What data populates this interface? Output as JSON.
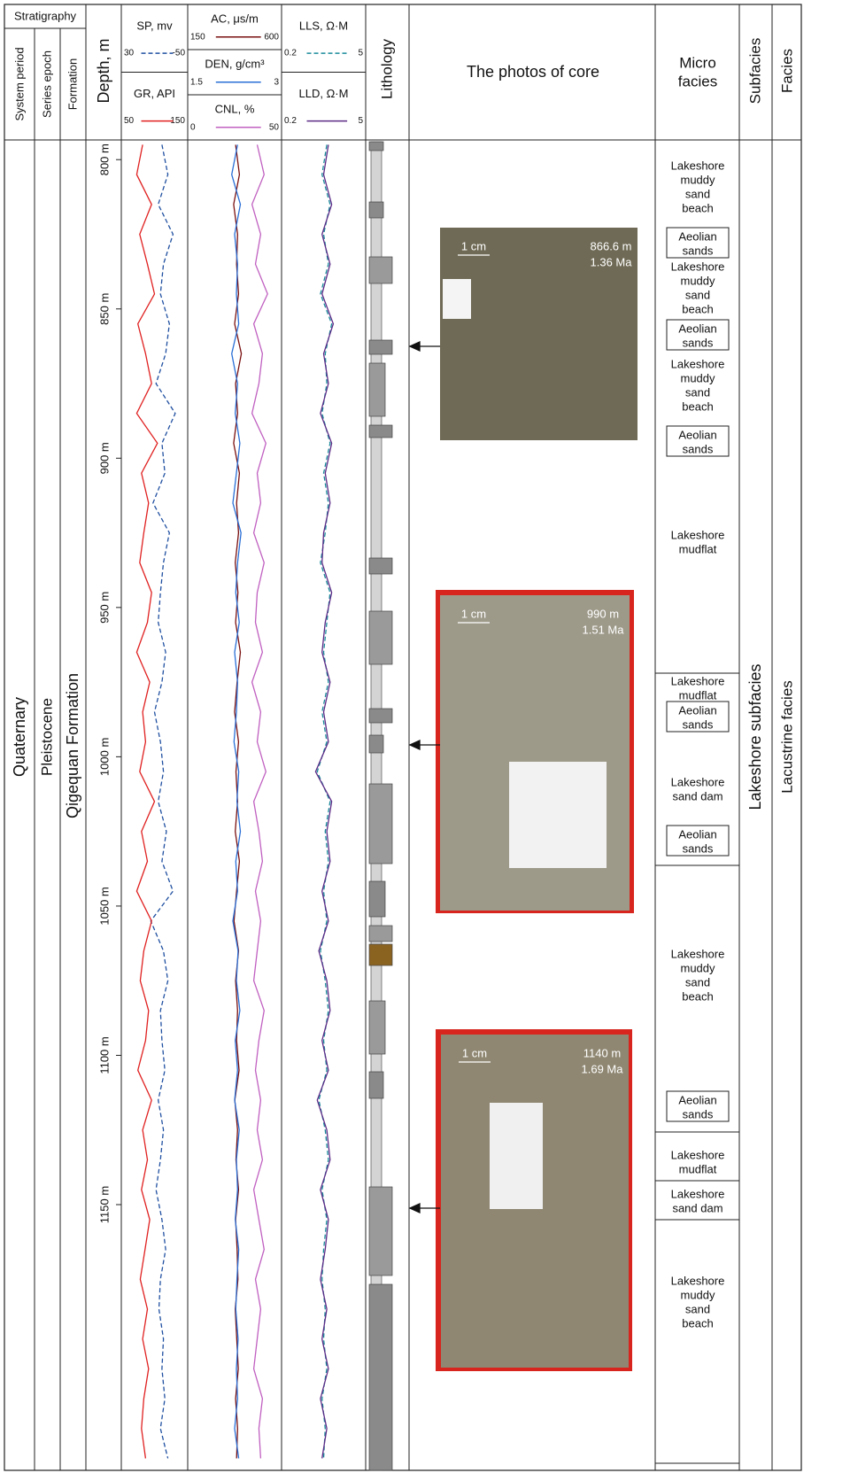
{
  "header": {
    "stratigraphy": "Stratigraphy",
    "system_period": "System period",
    "series_epoch": "Series epoch",
    "formation": "Formation",
    "depth": "Depth, m",
    "lithology": "Lithology",
    "photos": "The photos of core",
    "micro_facies": [
      "Micro",
      "facies"
    ],
    "subfacies": "Subfacies",
    "facies": "Facies"
  },
  "stratigraphy": {
    "system": "Quaternary",
    "series": "Pleistocene",
    "formation": "Qigequan Formation"
  },
  "depth": {
    "range": [
      794,
      1239
    ],
    "ticks": [
      {
        "value": 800,
        "label": "800 m"
      },
      {
        "value": 850,
        "label": "850 m"
      },
      {
        "value": 900,
        "label": "900 m"
      },
      {
        "value": 950,
        "label": "950 m"
      },
      {
        "value": 1000,
        "label": "1000 m"
      },
      {
        "value": 1050,
        "label": "1050 m"
      },
      {
        "value": 1100,
        "label": "1100 m"
      },
      {
        "value": 1150,
        "label": "1150 m"
      }
    ]
  },
  "logs": {
    "depths": [
      795,
      805,
      815,
      825,
      835,
      845,
      855,
      865,
      875,
      885,
      895,
      905,
      915,
      925,
      935,
      945,
      955,
      965,
      975,
      985,
      995,
      1005,
      1015,
      1025,
      1035,
      1045,
      1055,
      1065,
      1075,
      1085,
      1095,
      1105,
      1115,
      1125,
      1135,
      1145,
      1155,
      1165,
      1175,
      1185,
      1195,
      1205,
      1215,
      1225,
      1235
    ],
    "tracks": [
      {
        "curves": [
          {
            "name": "SP, mv",
            "color": "#1f4fa0",
            "dash": true,
            "scale": [
              30,
              -50
            ],
            "values": [
              -20,
              -28,
              -15,
              -35,
              -22,
              -18,
              -30,
              -25,
              -12,
              -38,
              -20,
              -24,
              -8,
              -30,
              -22,
              -18,
              -15,
              -25,
              -20,
              -10,
              -18,
              -22,
              -15,
              -26,
              -20,
              -35,
              -5,
              -22,
              -28,
              -18,
              -20,
              -24,
              -15,
              -22,
              -18,
              -12,
              -20,
              -25,
              -18,
              -16,
              -22,
              -20,
              -24,
              -18,
              -28
            ]
          },
          {
            "name": "GR, API",
            "color": "#e02020",
            "dash": false,
            "scale": [
              50,
              150
            ],
            "values": [
              80,
              70,
              95,
              75,
              88,
              100,
              72,
              85,
              95,
              70,
              105,
              78,
              90,
              82,
              75,
              95,
              88,
              70,
              92,
              80,
              85,
              75,
              100,
              78,
              88,
              70,
              95,
              82,
              76,
              90,
              85,
              72,
              95,
              80,
              88,
              78,
              92,
              84,
              76,
              88,
              80,
              90,
              82,
              78,
              85
            ]
          }
        ]
      },
      {
        "curves": [
          {
            "name": "AC, μs/m",
            "color": "#7a1010",
            "dash": false,
            "scale": [
              150,
              600
            ],
            "values": [
              380,
              400,
              370,
              390,
              385,
              395,
              375,
              410,
              380,
              390,
              370,
              400,
              385,
              395,
              378,
              392,
              380,
              405,
              388,
              375,
              395,
              382,
              390,
              378,
              400,
              385,
              372,
              395,
              380,
              390,
              385,
              398,
              376,
              390,
              382,
              395,
              380,
              388,
              392,
              378,
              386,
              394,
              380,
              390,
              385
            ]
          },
          {
            "name": "DEN, g/cm³",
            "color": "#2a6fd6",
            "dash": false,
            "scale": [
              1.5,
              3.0
            ],
            "values": [
              2.3,
              2.2,
              2.35,
              2.25,
              2.3,
              2.28,
              2.32,
              2.2,
              2.3,
              2.26,
              2.34,
              2.28,
              2.22,
              2.36,
              2.3,
              2.27,
              2.33,
              2.25,
              2.3,
              2.28,
              2.24,
              2.32,
              2.29,
              2.35,
              2.27,
              2.3,
              2.22,
              2.31,
              2.28,
              2.34,
              2.26,
              2.3,
              2.25,
              2.33,
              2.28,
              2.3,
              2.26,
              2.32,
              2.29,
              2.27,
              2.31,
              2.28,
              2.3,
              2.25,
              2.32
            ]
          },
          {
            "name": "CNL, %",
            "color": "#c060c0",
            "dash": false,
            "scale": [
              0,
              50
            ],
            "values": [
              38,
              42,
              35,
              40,
              37,
              44,
              36,
              41,
              39,
              35,
              43,
              38,
              40,
              36,
              42,
              38,
              37,
              41,
              35,
              40,
              38,
              43,
              36,
              39,
              41,
              37,
              40,
              38,
              36,
              42,
              39,
              37,
              40,
              38,
              41,
              36,
              39,
              42,
              37,
              40,
              38,
              36,
              41,
              39,
              40
            ]
          }
        ]
      },
      {
        "curves": [
          {
            "name": "LLS, Ω·M",
            "color": "#1a8a9a",
            "dash": true,
            "scale": [
              0.2,
              5.0
            ],
            "values": [
              2.8,
              2.5,
              3.0,
              2.6,
              2.9,
              2.4,
              3.1,
              2.7,
              2.8,
              2.5,
              3.0,
              2.6,
              2.9,
              2.7,
              2.4,
              3.0,
              2.8,
              2.6,
              2.9,
              2.5,
              2.8,
              2.2,
              3.0,
              2.7,
              2.9,
              2.6,
              2.8,
              2.4,
              2.7,
              2.9,
              2.6,
              2.8,
              2.3,
              2.7,
              2.9,
              2.5,
              2.8,
              2.6,
              2.5,
              2.7,
              2.6,
              2.8,
              2.5,
              2.7,
              2.6
            ]
          },
          {
            "name": "LLD, Ω·M",
            "color": "#5b2a86",
            "dash": false,
            "scale": [
              0.2,
              5.0
            ],
            "values": [
              2.9,
              2.6,
              3.1,
              2.5,
              3.0,
              2.5,
              3.2,
              2.6,
              2.9,
              2.4,
              3.1,
              2.7,
              3.0,
              2.6,
              2.5,
              3.1,
              2.7,
              2.5,
              3.0,
              2.6,
              2.9,
              2.1,
              3.1,
              2.8,
              3.0,
              2.5,
              2.9,
              2.3,
              2.8,
              3.0,
              2.5,
              2.9,
              2.2,
              2.8,
              3.0,
              2.4,
              2.9,
              2.7,
              2.4,
              2.8,
              2.5,
              2.9,
              2.4,
              2.8,
              2.5
            ]
          }
        ]
      }
    ]
  },
  "photos": [
    {
      "scale": "1 cm",
      "depth": "866.6 m",
      "age": "1.36 Ma"
    },
    {
      "scale": "1 cm",
      "depth": "990 m",
      "age": "1.51 Ma"
    },
    {
      "scale": "1 cm",
      "depth": "1140 m",
      "age": "1.69 Ma"
    }
  ],
  "micro_facies": [
    {
      "lines": [
        "Lakeshore",
        "muddy",
        "sand",
        "beach"
      ]
    },
    {
      "lines": [
        "Aeolian",
        "sands"
      ]
    },
    {
      "lines": [
        "Lakeshore",
        "muddy",
        "sand",
        "beach"
      ]
    },
    {
      "lines": [
        "Aeolian",
        "sands"
      ]
    },
    {
      "lines": [
        "Lakeshore",
        "muddy",
        "sand",
        "beach"
      ]
    },
    {
      "lines": [
        "Aeolian",
        "sands"
      ]
    },
    {
      "lines": [
        "Lakeshore",
        "mudflat"
      ]
    },
    {
      "lines": [
        "Lakeshore",
        "mudflat"
      ]
    },
    {
      "lines": [
        "Aeolian",
        "sands"
      ]
    },
    {
      "lines": [
        "Lakeshore",
        "sand dam"
      ]
    },
    {
      "lines": [
        "Aeolian",
        "sands"
      ]
    },
    {
      "lines": [
        "Lakeshore",
        "muddy",
        "sand",
        "beach"
      ]
    },
    {
      "lines": [
        "Aeolian",
        "sands"
      ]
    },
    {
      "lines": [
        "Lakeshore",
        "mudflat"
      ]
    },
    {
      "lines": [
        "Lakeshore",
        "sand dam"
      ]
    },
    {
      "lines": [
        "Lakeshore",
        "muddy",
        "sand",
        "beach"
      ]
    }
  ],
  "subfacies": "Lakeshore subfacies",
  "facies": "Lacustrine facies"
}
